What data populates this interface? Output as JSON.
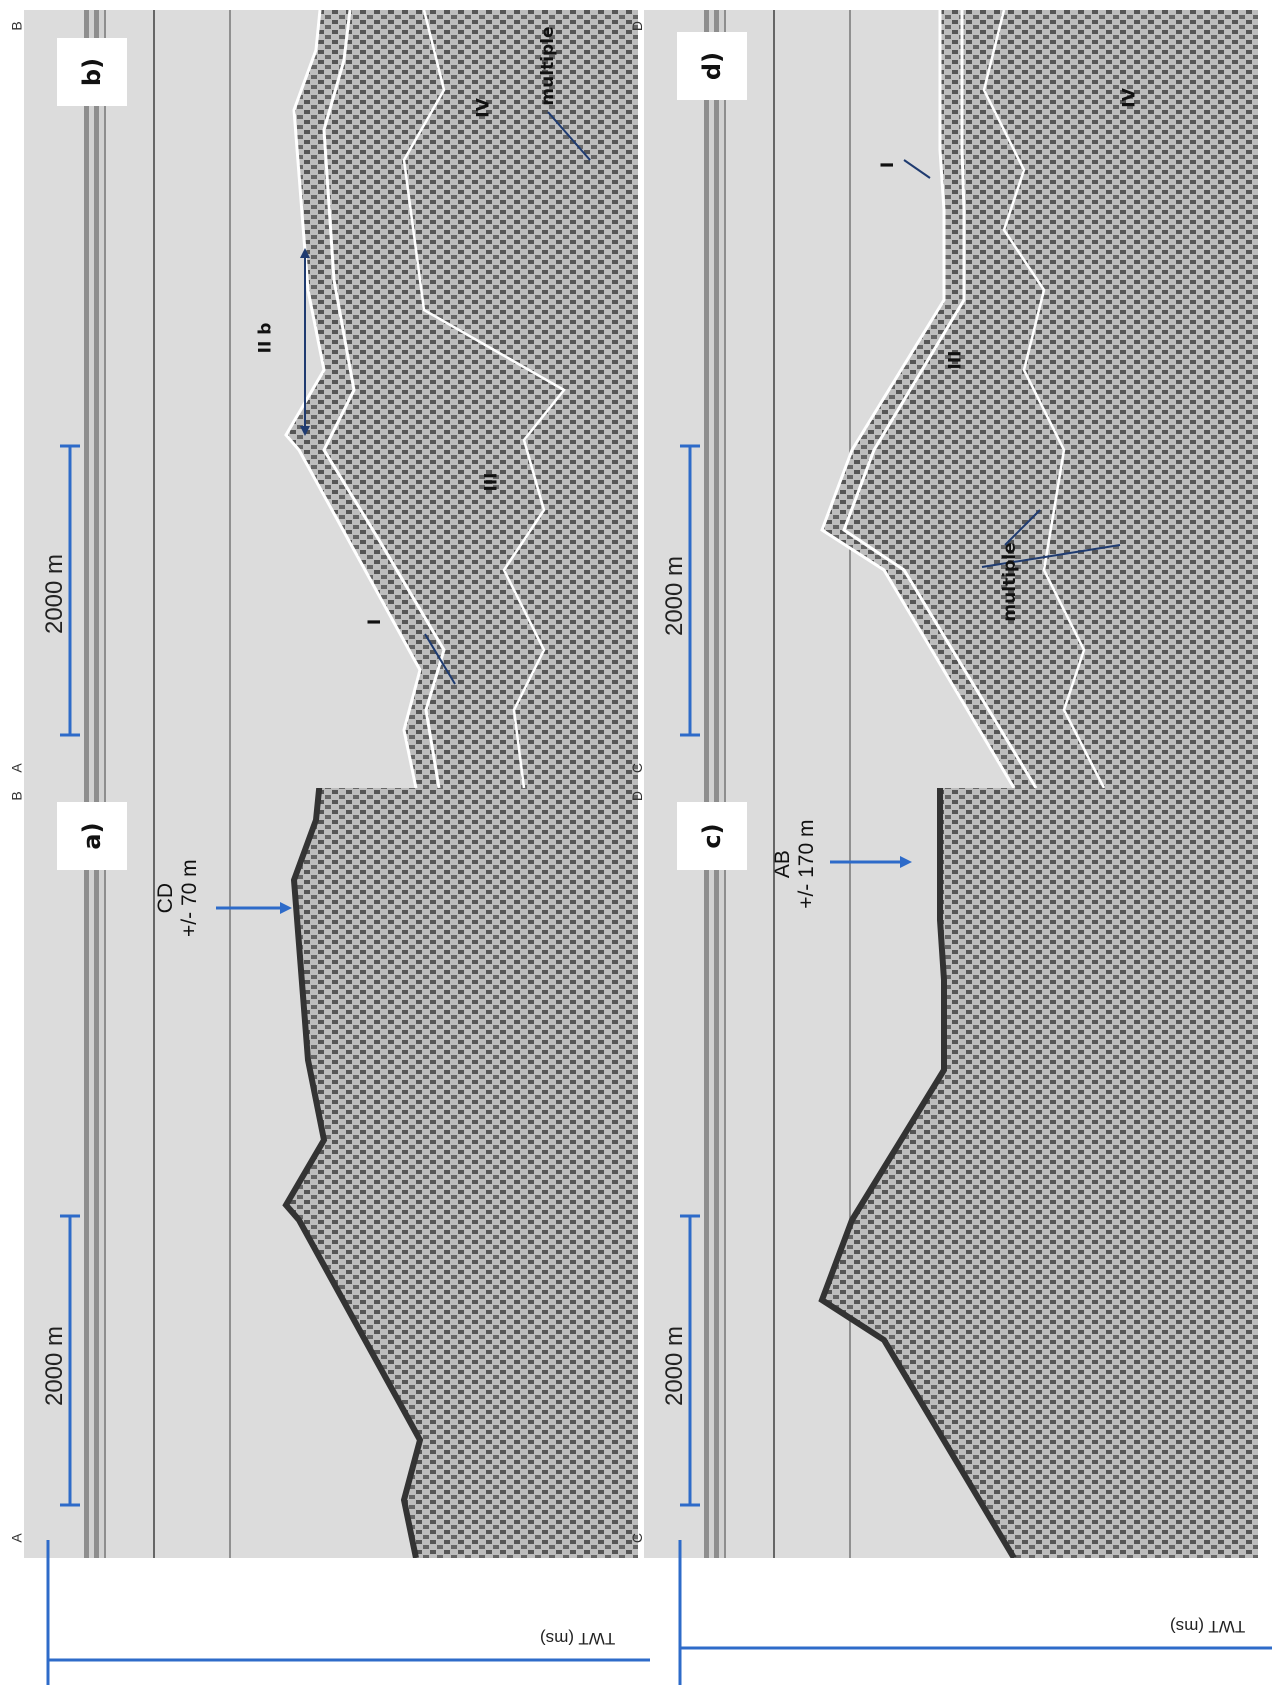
{
  "figure": {
    "colors": {
      "annotation_blue": "#2e6bc9",
      "interpretation_white": "#ffffff",
      "seismic_bg": "#d9d9d9"
    },
    "panels": {
      "a": {
        "label": "a)",
        "corner_start": "A",
        "corner_end": "B",
        "scale_bar": "2000 m",
        "cross_line_label": "CD",
        "cross_line_offset": "+/- 70 m"
      },
      "b": {
        "label": "b)",
        "corner_start": "A",
        "corner_end": "B",
        "scale_bar": "2000 m",
        "unit_I": "I",
        "unit_IIb": "II b",
        "unit_III": "III",
        "unit_IV": "IV",
        "multiple": "multiple"
      },
      "c": {
        "label": "c)",
        "corner_start": "C",
        "corner_end": "D",
        "scale_bar": "2000 m",
        "cross_line_label": "AB",
        "cross_line_offset": "+/- 170 m"
      },
      "d": {
        "label": "d)",
        "corner_start": "C",
        "corner_end": "D",
        "scale_bar": "2000 m",
        "unit_I": "I",
        "unit_III": "III",
        "unit_IV": "IV",
        "multiple": "multiple"
      }
    },
    "axis_label": "TWT (ms)"
  }
}
